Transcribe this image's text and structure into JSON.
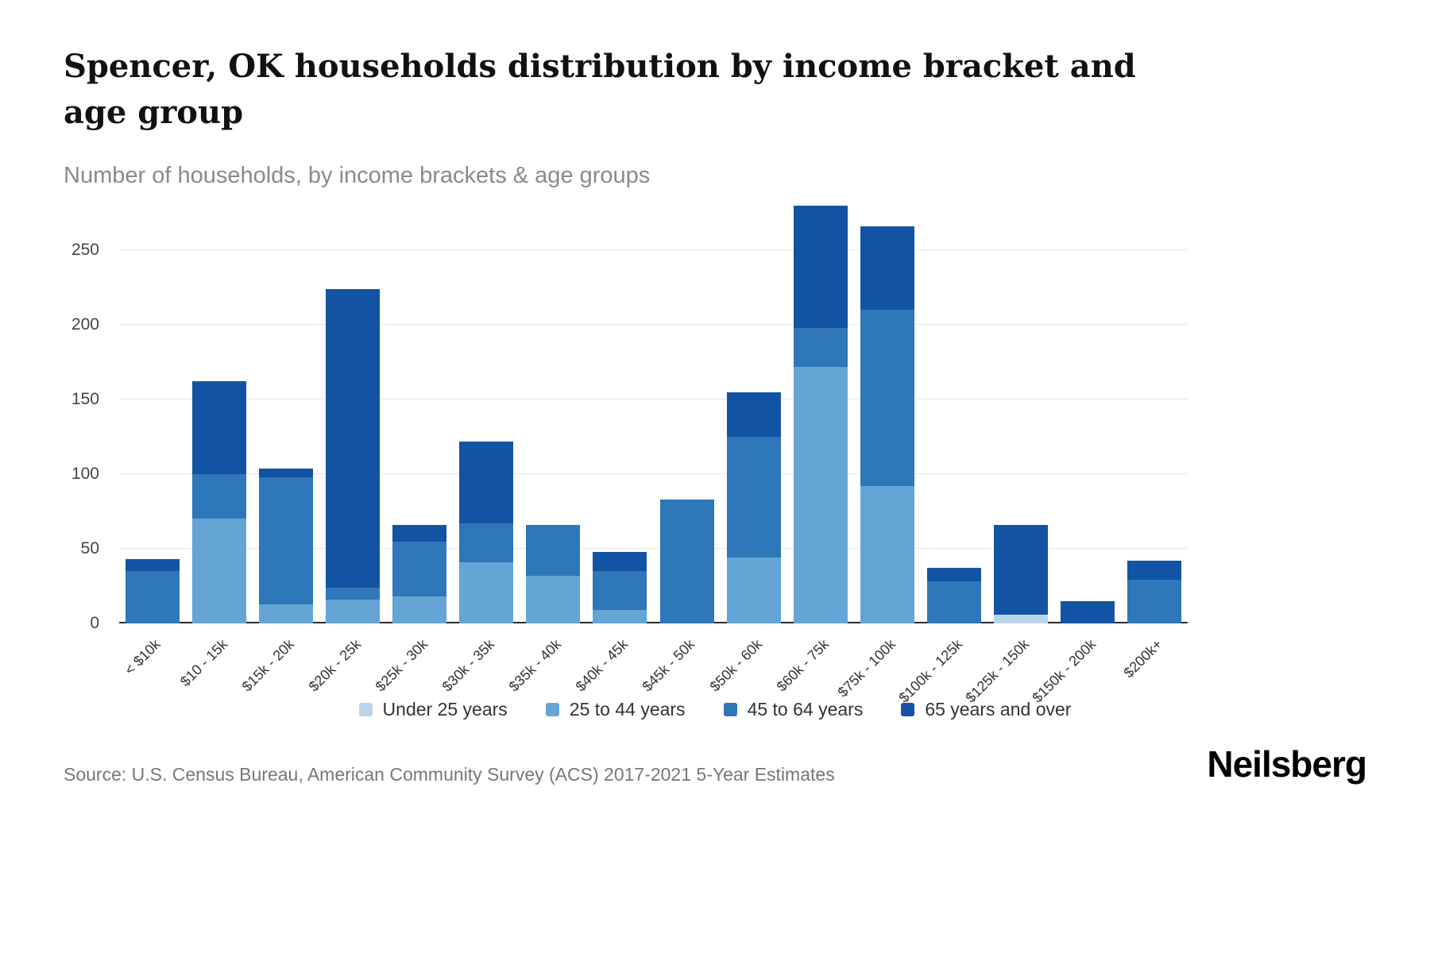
{
  "header": {
    "title": "Spencer, OK households distribution by income bracket and age group",
    "subtitle": "Number of households, by income brackets & age groups"
  },
  "chart_data": {
    "type": "bar",
    "stacked": true,
    "title": "Spencer, OK households distribution by income bracket and age group",
    "subtitle": "Number of households, by income brackets & age groups",
    "xlabel": "",
    "ylabel": "Number of households",
    "ylim": [
      0,
      250
    ],
    "yticks": [
      0,
      50,
      100,
      150,
      200,
      250
    ],
    "grid": true,
    "legend_position": "bottom",
    "categories": [
      "< $10k",
      "$10 - 15k",
      "$15k - 20k",
      "$20k - 25k",
      "$25k - 30k",
      "$30k - 35k",
      "$35k - 40k",
      "$40k - 45k",
      "$45k - 50k",
      "$50k - 60k",
      "$60k - 75k",
      "$75k - 100k",
      "$100k - 125k",
      "$125k - 150k",
      "$150k - 200k",
      "$200k+"
    ],
    "series": [
      {
        "name": "Under 25 years",
        "color": "#bad5ea",
        "values": [
          0,
          0,
          0,
          0,
          0,
          0,
          0,
          0,
          0,
          0,
          0,
          0,
          0,
          6,
          0,
          0
        ]
      },
      {
        "name": "25 to 44 years",
        "color": "#64a5d6",
        "values": [
          0,
          70,
          13,
          16,
          18,
          41,
          32,
          9,
          0,
          44,
          172,
          92,
          0,
          0,
          0,
          0
        ]
      },
      {
        "name": "45 to 64 years",
        "color": "#2e77b8",
        "values": [
          35,
          30,
          85,
          8,
          37,
          26,
          34,
          26,
          83,
          81,
          26,
          118,
          28,
          0,
          0,
          29
        ]
      },
      {
        "name": "65 years and over",
        "color": "#1353a4",
        "values": [
          8,
          62,
          6,
          200,
          11,
          55,
          0,
          13,
          0,
          30,
          82,
          56,
          9,
          60,
          15,
          13
        ]
      }
    ]
  },
  "footer": {
    "source": "Source: U.S. Census Bureau, American Community Survey (ACS) 2017-2021 5-Year Estimates",
    "logo": "Neilsberg"
  }
}
